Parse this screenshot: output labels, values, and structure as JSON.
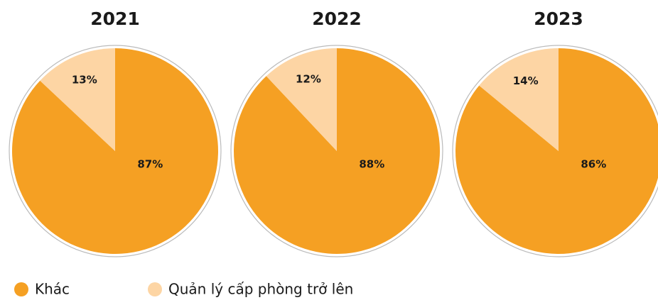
{
  "chart_data": [
    {
      "type": "pie",
      "title": "2021",
      "categories": [
        "Khác",
        "Quản lý cấp phòng trở lên"
      ],
      "values": [
        87,
        13
      ],
      "value_labels": [
        "87%",
        "13%"
      ],
      "colors": [
        "#f5a023",
        "#fdd5a4"
      ]
    },
    {
      "type": "pie",
      "title": "2022",
      "categories": [
        "Khác",
        "Quản lý cấp phòng trở lên"
      ],
      "values": [
        88,
        12
      ],
      "value_labels": [
        "88%",
        "12%"
      ],
      "colors": [
        "#f5a023",
        "#fdd5a4"
      ]
    },
    {
      "type": "pie",
      "title": "2023",
      "categories": [
        "Khác",
        "Quản lý cấp phòng trở lên"
      ],
      "values": [
        86,
        14
      ],
      "value_labels": [
        "86%",
        "14%"
      ],
      "colors": [
        "#f5a023",
        "#fdd5a4"
      ]
    }
  ]
}
